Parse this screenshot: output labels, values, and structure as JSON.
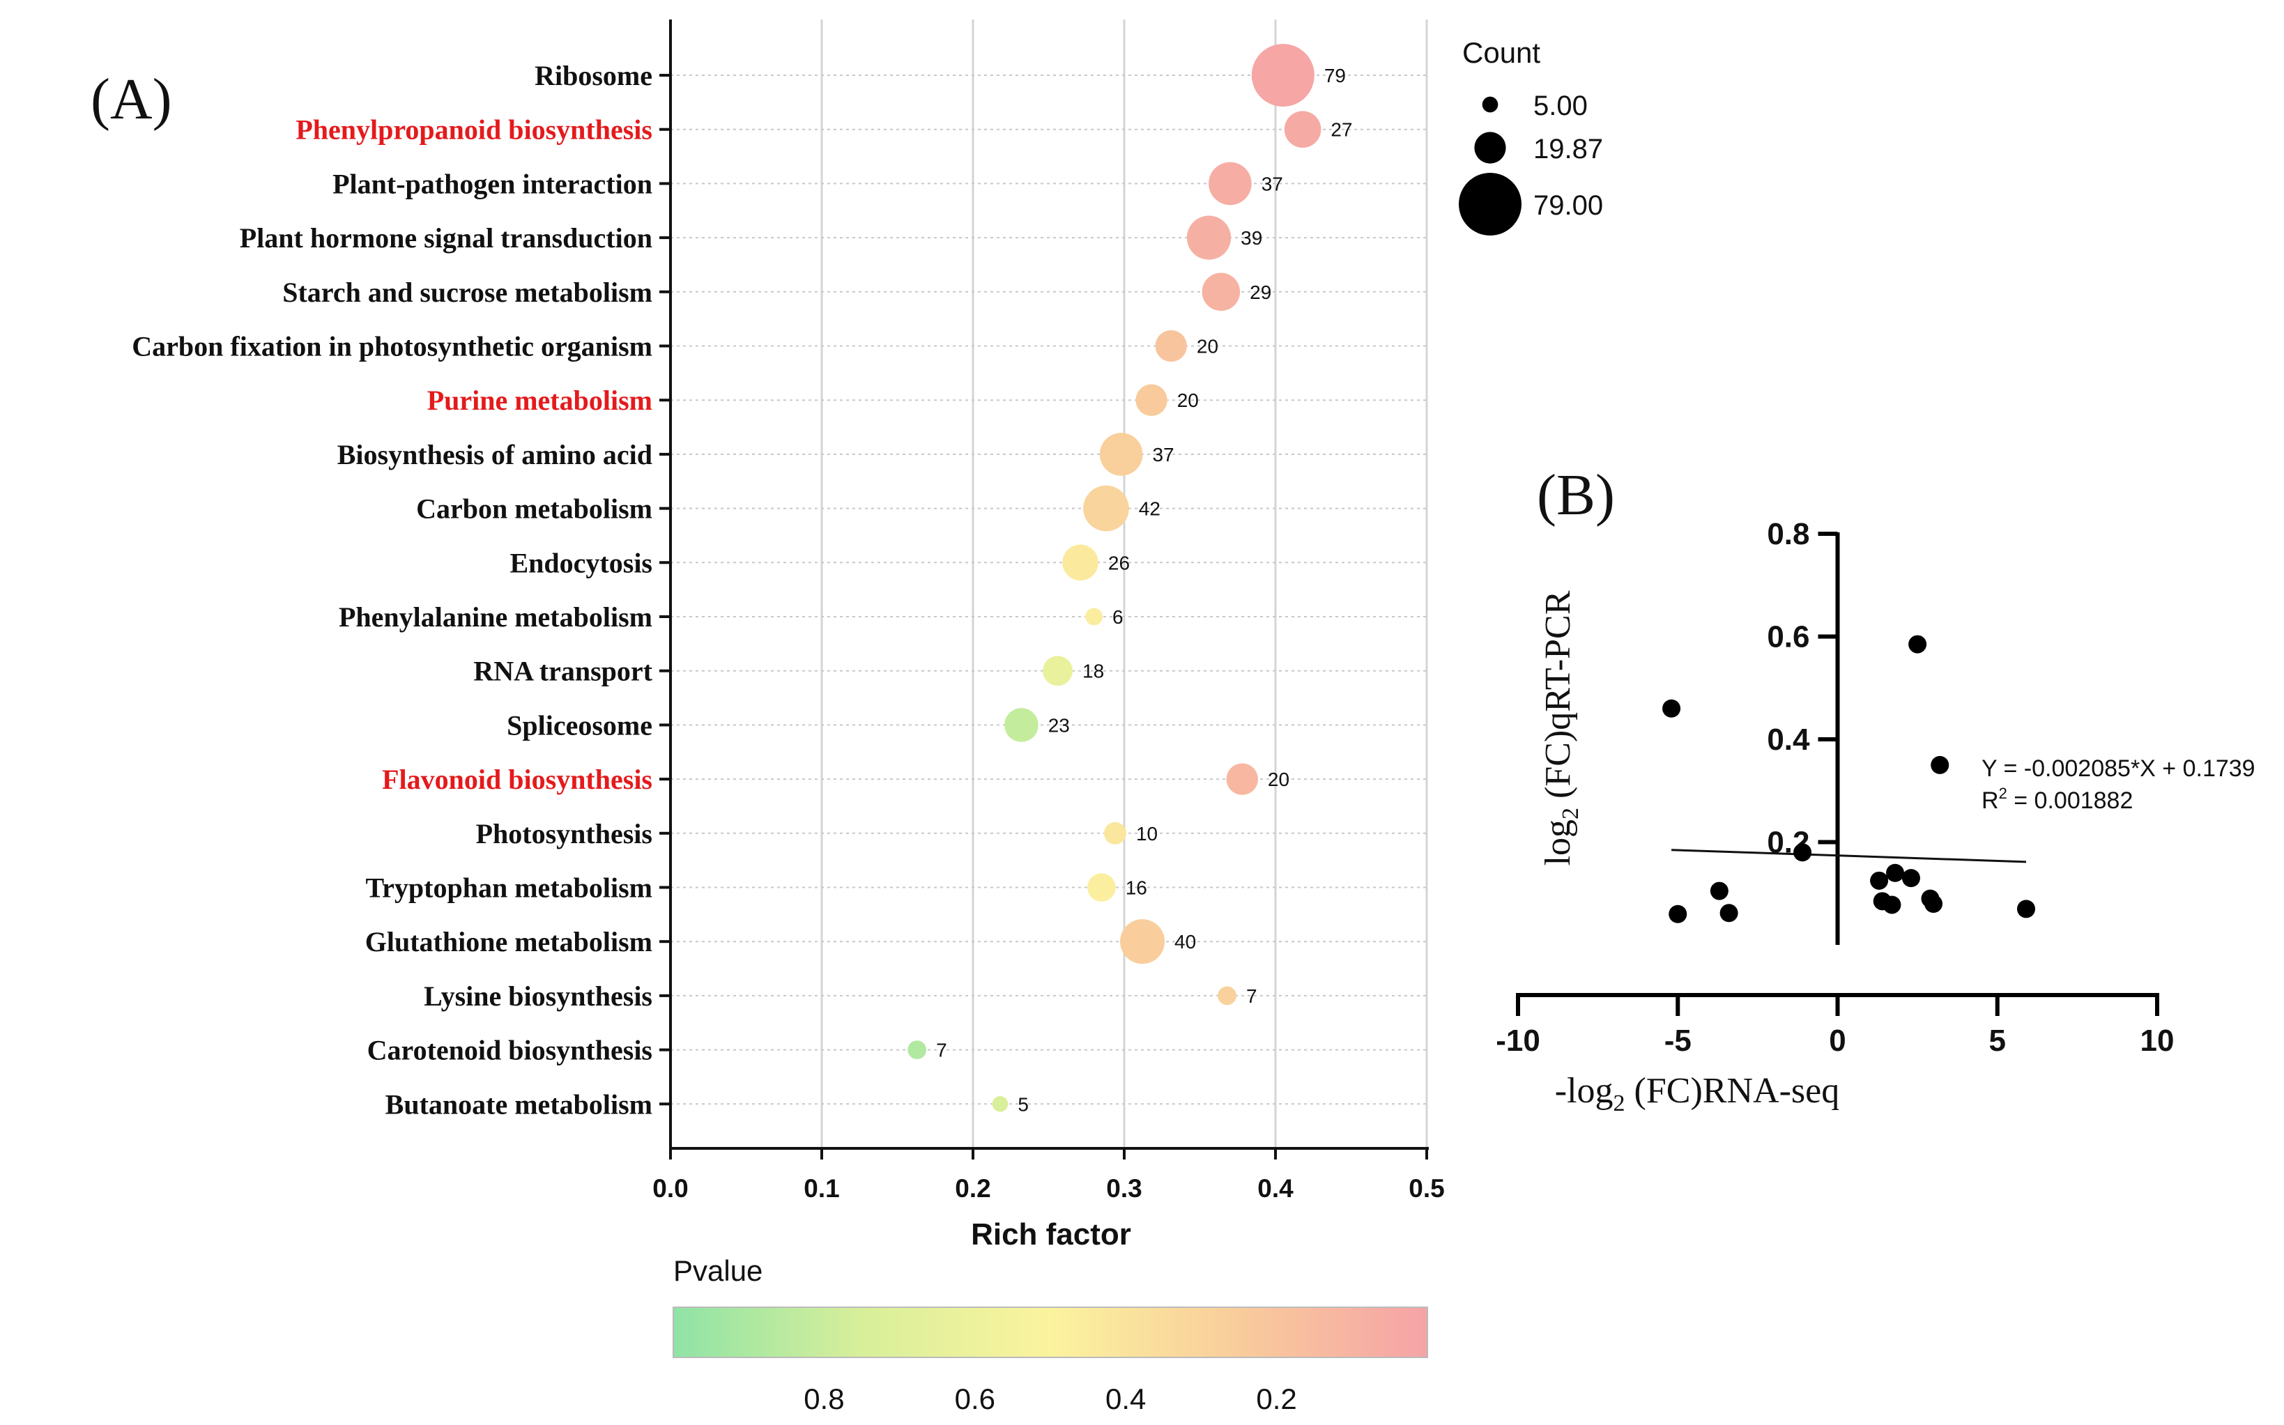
{
  "chart_data": [
    {
      "panel_label": "(A)",
      "type": "scatter",
      "subtype": "bubble",
      "xlabel": "Rich factor",
      "xlim": [
        0.0,
        0.5
      ],
      "x_ticks": [
        "0.0",
        "0.1",
        "0.2",
        "0.3",
        "0.4",
        "0.5"
      ],
      "x_tick_values": [
        0.0,
        0.1,
        0.2,
        0.3,
        0.4,
        0.5
      ],
      "grid": true,
      "highlight_color": "#e41a1c",
      "categories": [
        {
          "name": "Ribosome",
          "rich_factor": 0.405,
          "count": 79,
          "pvalue": 0.02,
          "highlight": false
        },
        {
          "name": "Phenylpropanoid biosynthesis",
          "rich_factor": 0.418,
          "count": 27,
          "pvalue": 0.04,
          "highlight": true
        },
        {
          "name": "Plant-pathogen interaction",
          "rich_factor": 0.37,
          "count": 37,
          "pvalue": 0.06,
          "highlight": false
        },
        {
          "name": "Plant hormone signal transduction",
          "rich_factor": 0.356,
          "count": 39,
          "pvalue": 0.08,
          "highlight": false
        },
        {
          "name": "Starch and sucrose metabolism",
          "rich_factor": 0.364,
          "count": 29,
          "pvalue": 0.1,
          "highlight": false
        },
        {
          "name": "Carbon fixation in photosynthetic organism",
          "rich_factor": 0.331,
          "count": 20,
          "pvalue": 0.2,
          "highlight": false
        },
        {
          "name": "Purine metabolism",
          "rich_factor": 0.318,
          "count": 20,
          "pvalue": 0.24,
          "highlight": true
        },
        {
          "name": "Biosynthesis of amino acid",
          "rich_factor": 0.298,
          "count": 37,
          "pvalue": 0.27,
          "highlight": false
        },
        {
          "name": "Carbon metabolism",
          "rich_factor": 0.288,
          "count": 42,
          "pvalue": 0.3,
          "highlight": false
        },
        {
          "name": "Endocytosis",
          "rich_factor": 0.271,
          "count": 26,
          "pvalue": 0.44,
          "highlight": false
        },
        {
          "name": "Phenylalanine metabolism",
          "rich_factor": 0.28,
          "count": 6,
          "pvalue": 0.46,
          "highlight": false
        },
        {
          "name": "RNA transport",
          "rich_factor": 0.256,
          "count": 18,
          "pvalue": 0.62,
          "highlight": false
        },
        {
          "name": "Spliceosome",
          "rich_factor": 0.232,
          "count": 23,
          "pvalue": 0.82,
          "highlight": false
        },
        {
          "name": "Flavonoid biosynthesis",
          "rich_factor": 0.378,
          "count": 20,
          "pvalue": 0.12,
          "highlight": true
        },
        {
          "name": "Photosynthesis",
          "rich_factor": 0.294,
          "count": 10,
          "pvalue": 0.42,
          "highlight": false
        },
        {
          "name": "Tryptophan metabolism",
          "rich_factor": 0.285,
          "count": 16,
          "pvalue": 0.47,
          "highlight": false
        },
        {
          "name": "Glutathione metabolism",
          "rich_factor": 0.312,
          "count": 40,
          "pvalue": 0.26,
          "highlight": false
        },
        {
          "name": "Lysine biosynthesis",
          "rich_factor": 0.368,
          "count": 7,
          "pvalue": 0.28,
          "highlight": false
        },
        {
          "name": "Carotenoid biosynthesis",
          "rich_factor": 0.163,
          "count": 7,
          "pvalue": 0.88,
          "highlight": false
        },
        {
          "name": "Butanoate metabolism",
          "rich_factor": 0.218,
          "count": 5,
          "pvalue": 0.74,
          "highlight": false
        }
      ],
      "size_legend": {
        "title": "Count",
        "entries": [
          "5.00",
          "19.87",
          "79.00"
        ],
        "values": [
          5,
          19.87,
          79
        ]
      },
      "color_legend": {
        "title": "Pvalue",
        "range": [
          1.0,
          0.0
        ],
        "ticks": [
          "0.8",
          "0.6",
          "0.4",
          "0.2"
        ],
        "tick_values": [
          0.8,
          0.6,
          0.4,
          0.2
        ],
        "colors": [
          "#8fe3a6",
          "#d8ef9a",
          "#fbf39e",
          "#f9cc9c",
          "#f5a3a6"
        ]
      }
    },
    {
      "panel_label": "(B)",
      "type": "scatter",
      "xlabel": "-log",
      "xlabel_sub": "2",
      "xlabel_rest": " (FC)RNA-seq",
      "ylabel": "log",
      "ylabel_sub": "2",
      "ylabel_rest": " (FC)qRT-PCR",
      "xlim": [
        -10,
        10
      ],
      "ylim": [
        0,
        0.8
      ],
      "x_ticks": [
        "-10",
        "-5",
        "0",
        "5",
        "10"
      ],
      "x_tick_values": [
        -10,
        -5,
        0,
        5,
        10
      ],
      "y_ticks": [
        "0.2",
        "0.4",
        "0.6",
        "0.8"
      ],
      "y_tick_values": [
        0.2,
        0.4,
        0.6,
        0.8
      ],
      "points": [
        {
          "x": -5.2,
          "y": 0.46
        },
        {
          "x": -5.0,
          "y": 0.06
        },
        {
          "x": -3.7,
          "y": 0.105
        },
        {
          "x": -3.4,
          "y": 0.062
        },
        {
          "x": -1.1,
          "y": 0.18
        },
        {
          "x": 1.3,
          "y": 0.125
        },
        {
          "x": 1.4,
          "y": 0.085
        },
        {
          "x": 1.7,
          "y": 0.078
        },
        {
          "x": 1.8,
          "y": 0.14
        },
        {
          "x": 2.3,
          "y": 0.13
        },
        {
          "x": 2.5,
          "y": 0.585
        },
        {
          "x": 2.9,
          "y": 0.09
        },
        {
          "x": 3.0,
          "y": 0.08
        },
        {
          "x": 3.2,
          "y": 0.35
        },
        {
          "x": 5.9,
          "y": 0.07
        }
      ],
      "fit_line": {
        "slope": -0.002085,
        "intercept": 0.1739,
        "x_range": [
          -5.2,
          5.9
        ]
      },
      "equation": "Y = -0.002085*X + 0.1739",
      "r2_label": "R",
      "r2_sup": "2",
      "r2_value": " = 0.001882"
    }
  ]
}
